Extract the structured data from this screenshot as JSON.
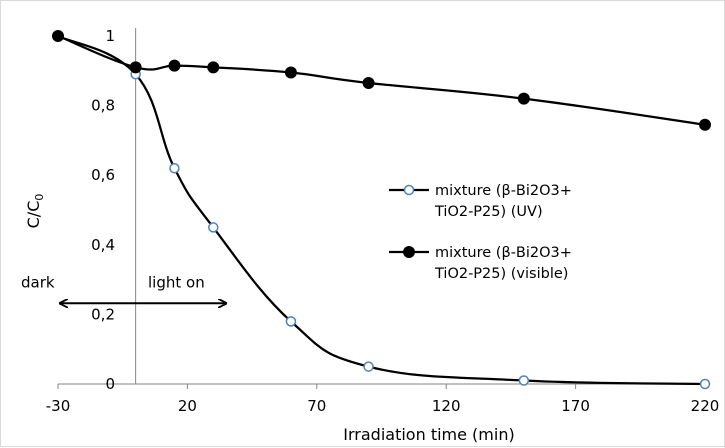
{
  "chart_data": {
    "type": "line",
    "title": "",
    "xlabel": "Irradiation time (min)",
    "ylabel_main": "C/C",
    "ylabel_sub": "0",
    "xlim": [
      -30,
      220
    ],
    "ylim": [
      0,
      1
    ],
    "x_ticks": [
      -30,
      20,
      70,
      120,
      170,
      220
    ],
    "x_tick_labels": [
      "-30",
      "20",
      "70",
      "120",
      "170",
      "220"
    ],
    "y_ticks": [
      0,
      0.2,
      0.4,
      0.6,
      0.8,
      1
    ],
    "y_tick_labels": [
      "0",
      "0,2",
      "0,4",
      "0,6",
      "0,8",
      "1"
    ],
    "grid": false,
    "legend_position": "right",
    "series": [
      {
        "name_line1": "mixture (β-Bi2O3+",
        "name_line2": "TiO2-P25) (UV)",
        "marker": "open-circle",
        "color": "#000000",
        "marker_fill": "#ffffff",
        "marker_stroke": "#4f81bd",
        "x": [
          -30,
          0,
          15,
          30,
          60,
          90,
          150,
          220
        ],
        "y": [
          1.0,
          0.89,
          0.62,
          0.45,
          0.18,
          0.05,
          0.01,
          0.0
        ]
      },
      {
        "name_line1": "mixture (β-Bi2O3+",
        "name_line2": "TiO2-P25) (visible)",
        "marker": "filled-circle",
        "color": "#000000",
        "marker_fill": "#000000",
        "marker_stroke": "#000000",
        "x": [
          -30,
          0,
          15,
          30,
          60,
          90,
          150,
          220
        ],
        "y": [
          1.0,
          0.91,
          0.915,
          0.91,
          0.895,
          0.865,
          0.82,
          0.745
        ]
      }
    ],
    "annotations": {
      "dark_label": "dark",
      "light_label": "light on",
      "arrow_range": [
        -30,
        35
      ],
      "arrow_y": 0.255,
      "divider_x": 0
    }
  }
}
